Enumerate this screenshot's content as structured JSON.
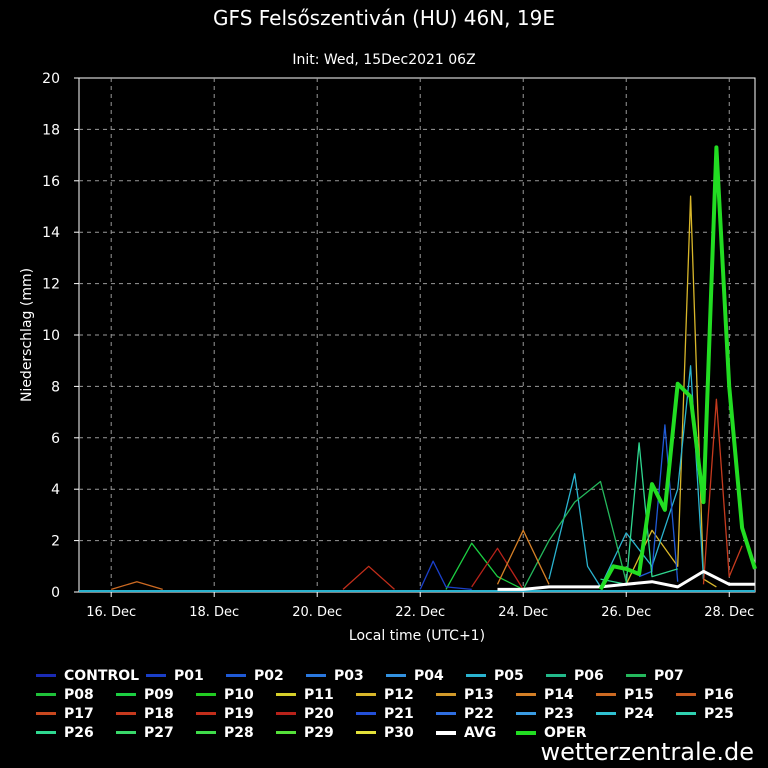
{
  "chart_data": {
    "type": "line",
    "title": "GFS Felsőszentiván (HU) 46N, 19E",
    "subtitle": "Init: Wed, 15Dec2021 06Z",
    "xlabel": "Local time (UTC+1)",
    "ylabel": "Niederschlag (mm)",
    "ylim": [
      0,
      20
    ],
    "yticks": [
      "0",
      "2",
      "4",
      "6",
      "8",
      "10",
      "12",
      "14",
      "16",
      "18",
      "20"
    ],
    "xlim": [
      "15 Dec 09h",
      "28 Dec 12h"
    ],
    "xticks": [
      "16. Dec",
      "18. Dec",
      "20. Dec",
      "22. Dec",
      "24. Dec",
      "26. Dec",
      "28. Dec"
    ],
    "grid": true,
    "legend_position": "bottom",
    "series_colors": {
      "CONTROL": "#1a2bb5",
      "P01": "#1a3fc8",
      "P02": "#1f5ad6",
      "P03": "#2a78df",
      "P04": "#3392e0",
      "P05": "#2ab3cf",
      "P06": "#22b98a",
      "P07": "#24b85c",
      "P08": "#1fc23a",
      "P09": "#1ccf42",
      "P10": "#22cc22",
      "P11": "#d6cf2a",
      "P12": "#d9b72a",
      "P13": "#d29a2a",
      "P14": "#d47f26",
      "P15": "#cd6a22",
      "P16": "#c85a20",
      "P17": "#c8481f",
      "P18": "#c63a1e",
      "P19": "#c22e1b",
      "P20": "#b8221a",
      "P21": "#2350d8",
      "P22": "#2f6ee0",
      "P23": "#3a9be2",
      "P24": "#2fc0d0",
      "P25": "#2fd0b0",
      "P26": "#2fd890",
      "P27": "#39d86a",
      "P28": "#3fdc4a",
      "P29": "#55e03a",
      "P30": "#e2e03a",
      "AVG": "#ffffff",
      "OPER": "#22dd22"
    },
    "series": [
      {
        "name": "OPER",
        "x": [
          "25 Dec 12h",
          "25 Dec 18h",
          "26 Dec 00h",
          "26 Dec 06h",
          "26 Dec 12h",
          "26 Dec 18h",
          "27 Dec 00h",
          "27 Dec 06h",
          "27 Dec 12h",
          "27 Dec 18h",
          "28 Dec 00h",
          "28 Dec 06h",
          "28 Dec 12h"
        ],
        "values": [
          0.1,
          1.0,
          0.9,
          0.7,
          4.2,
          3.2,
          8.1,
          7.6,
          3.5,
          17.3,
          8.0,
          2.5,
          0.9
        ]
      },
      {
        "name": "AVG",
        "x": [
          "23 Dec 12h",
          "24 Dec 00h",
          "24 Dec 12h",
          "25 Dec 00h",
          "25 Dec 12h",
          "26 Dec 00h",
          "26 Dec 12h",
          "27 Dec 00h",
          "27 Dec 12h",
          "28 Dec 00h",
          "28 Dec 12h"
        ],
        "values": [
          0.1,
          0.1,
          0.2,
          0.2,
          0.2,
          0.3,
          0.4,
          0.2,
          0.8,
          0.3,
          0.3
        ]
      },
      {
        "name": "P12",
        "x": [
          "26 Dec 00h",
          "26 Dec 12h",
          "27 Dec 00h",
          "27 Dec 06h",
          "27 Dec 12h",
          "27 Dec 18h"
        ],
        "values": [
          0.3,
          2.4,
          1.0,
          15.4,
          0.5,
          0.2
        ]
      },
      {
        "name": "P05",
        "x": [
          "24 Dec 12h",
          "25 Dec 00h",
          "25 Dec 06h",
          "25 Dec 12h",
          "26 Dec 00h",
          "26 Dec 12h",
          "27 Dec 00h",
          "27 Dec 06h",
          "27 Dec 12h"
        ],
        "values": [
          0.5,
          4.6,
          1.0,
          0.2,
          2.3,
          1.0,
          4.0,
          8.8,
          0.5
        ]
      },
      {
        "name": "P18",
        "x": [
          "27 Dec 12h",
          "27 Dec 18h",
          "28 Dec 00h",
          "28 Dec 06h"
        ],
        "values": [
          0.3,
          7.5,
          0.6,
          1.8
        ]
      },
      {
        "name": "P02",
        "x": [
          "26 Dec 06h",
          "26 Dec 12h",
          "26 Dec 18h",
          "27 Dec 00h"
        ],
        "values": [
          0.6,
          0.8,
          6.5,
          0.4
        ]
      },
      {
        "name": "P26",
        "x": [
          "25 Dec 12h",
          "26 Dec 00h",
          "26 Dec 06h",
          "26 Dec 12h",
          "27 Dec 00h"
        ],
        "values": [
          0.5,
          0.3,
          5.8,
          0.6,
          0.9
        ]
      },
      {
        "name": "P07",
        "x": [
          "24 Dec 00h",
          "24 Dec 12h",
          "25 Dec 00h",
          "25 Dec 12h",
          "26 Dec 00h"
        ],
        "values": [
          0.1,
          2.0,
          3.5,
          4.3,
          0.4
        ]
      },
      {
        "name": "P09",
        "x": [
          "22 Dec 12h",
          "23 Dec 00h",
          "23 Dec 12h",
          "24 Dec 00h"
        ],
        "values": [
          0.1,
          1.9,
          0.6,
          0.1
        ]
      },
      {
        "name": "P20",
        "x": [
          "23 Dec 00h",
          "23 Dec 12h",
          "24 Dec 00h"
        ],
        "values": [
          0.2,
          1.7,
          0.1
        ]
      },
      {
        "name": "P14",
        "x": [
          "23 Dec 12h",
          "24 Dec 00h",
          "24 Dec 12h"
        ],
        "values": [
          0.3,
          2.4,
          0.3
        ]
      },
      {
        "name": "P01",
        "x": [
          "22 Dec 00h",
          "22 Dec 06h",
          "22 Dec 12h",
          "23 Dec 00h"
        ],
        "values": [
          0.1,
          1.2,
          0.2,
          0.1
        ]
      },
      {
        "name": "P19",
        "x": [
          "20 Dec 12h",
          "21 Dec 00h",
          "21 Dec 12h"
        ],
        "values": [
          0.1,
          1.0,
          0.1
        ]
      },
      {
        "name": "P15",
        "x": [
          "16 Dec 00h",
          "16 Dec 12h",
          "17 Dec 00h"
        ],
        "values": [
          0.1,
          0.4,
          0.1
        ]
      }
    ]
  },
  "legend": [
    [
      "CONTROL",
      "P01",
      "P02",
      "P03",
      "P04",
      "P05",
      "P06",
      "P07"
    ],
    [
      "P08",
      "P09",
      "P10",
      "P11",
      "P12",
      "P13",
      "P14",
      "P15",
      "P16"
    ],
    [
      "P17",
      "P18",
      "P19",
      "P20",
      "P21",
      "P22",
      "P23",
      "P24",
      "P25"
    ],
    [
      "P26",
      "P27",
      "P28",
      "P29",
      "P30",
      "AVG",
      "OPER"
    ]
  ],
  "credit": "wetterzentrale.de"
}
